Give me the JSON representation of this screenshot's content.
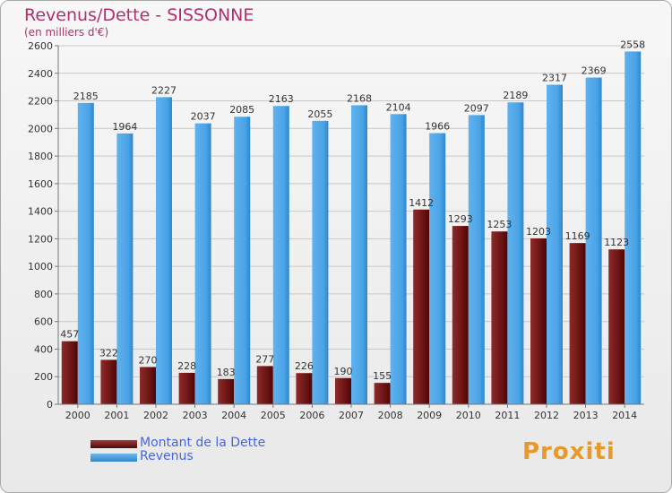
{
  "chart_data": {
    "type": "bar",
    "title": "Revenus/Dette - SISSONNE",
    "subtitle": "(en milliers d'€)",
    "categories": [
      "2000",
      "2001",
      "2002",
      "2003",
      "2004",
      "2005",
      "2006",
      "2007",
      "2008",
      "2009",
      "2010",
      "2011",
      "2012",
      "2013",
      "2014"
    ],
    "series": [
      {
        "name": "Montant de la Dette",
        "color": "#7a1a1a",
        "values": [
          457,
          322,
          270,
          228,
          183,
          277,
          226,
          190,
          155,
          1412,
          1293,
          1253,
          1203,
          1169,
          1123
        ]
      },
      {
        "name": "Revenus",
        "color": "#4aa3e6",
        "values": [
          2185,
          1964,
          2227,
          2037,
          2085,
          2163,
          2055,
          2168,
          2104,
          1966,
          2097,
          2189,
          2317,
          2369,
          2558
        ]
      }
    ],
    "ylim": [
      0,
      2600
    ],
    "yticks": [
      0,
      200,
      400,
      600,
      800,
      1000,
      1200,
      1400,
      1600,
      1800,
      2000,
      2200,
      2400,
      2600
    ],
    "grid": true,
    "legend": "bottom-left"
  },
  "logo": {
    "text": "Proxiti"
  }
}
